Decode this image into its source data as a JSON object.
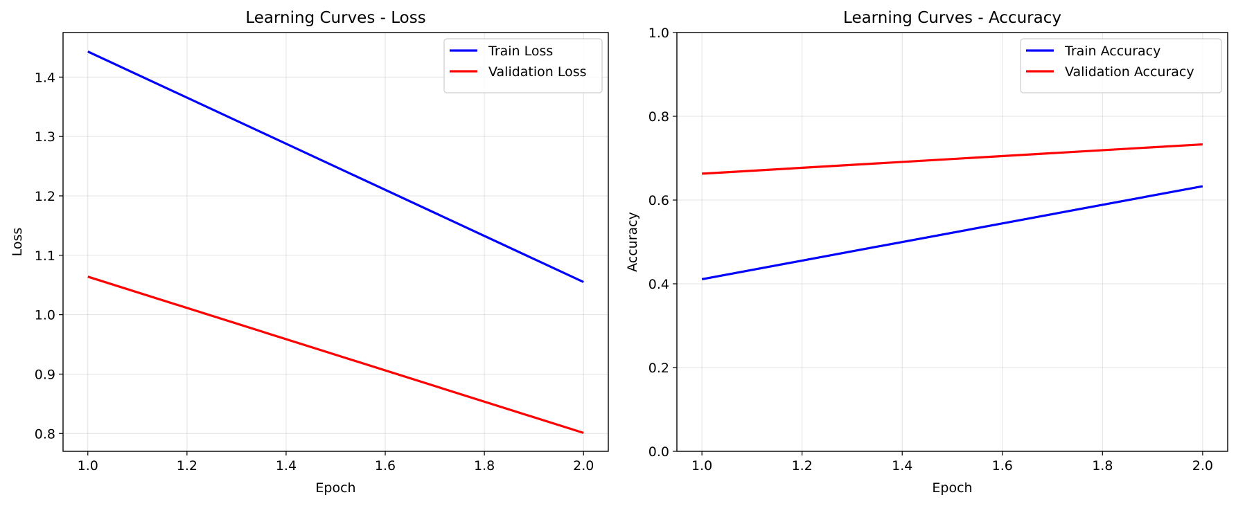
{
  "chart_data": [
    {
      "type": "line",
      "title": "Learning Curves - Loss",
      "xlabel": "Epoch",
      "ylabel": "Loss",
      "x": [
        1.0,
        2.0
      ],
      "xlim": [
        0.95,
        2.05
      ],
      "ylim": [
        0.77,
        1.475
      ],
      "xticks": [
        1.0,
        1.2,
        1.4,
        1.6,
        1.8,
        2.0
      ],
      "xtick_labels": [
        "1.0",
        "1.2",
        "1.4",
        "1.6",
        "1.8",
        "2.0"
      ],
      "yticks": [
        0.8,
        0.9,
        1.0,
        1.1,
        1.2,
        1.3,
        1.4
      ],
      "ytick_labels": [
        "0.8",
        "0.9",
        "1.0",
        "1.1",
        "1.2",
        "1.3",
        "1.4"
      ],
      "grid": true,
      "legend_position": "top-right",
      "series": [
        {
          "name": "Train Loss",
          "color": "#0000ff",
          "values": [
            1.443,
            1.055
          ]
        },
        {
          "name": "Validation Loss",
          "color": "#ff0000",
          "values": [
            1.064,
            0.801
          ]
        }
      ]
    },
    {
      "type": "line",
      "title": "Learning Curves - Accuracy",
      "xlabel": "Epoch",
      "ylabel": "Accuracy",
      "x": [
        1.0,
        2.0
      ],
      "xlim": [
        0.95,
        2.05
      ],
      "ylim": [
        0.0,
        1.0
      ],
      "xticks": [
        1.0,
        1.2,
        1.4,
        1.6,
        1.8,
        2.0
      ],
      "xtick_labels": [
        "1.0",
        "1.2",
        "1.4",
        "1.6",
        "1.8",
        "2.0"
      ],
      "yticks": [
        0.0,
        0.2,
        0.4,
        0.6,
        0.8,
        1.0
      ],
      "ytick_labels": [
        "0.0",
        "0.2",
        "0.4",
        "0.6",
        "0.8",
        "1.0"
      ],
      "grid": true,
      "legend_position": "top-right",
      "series": [
        {
          "name": "Train Accuracy",
          "color": "#0000ff",
          "values": [
            0.411,
            0.633
          ]
        },
        {
          "name": "Validation Accuracy",
          "color": "#ff0000",
          "values": [
            0.663,
            0.733
          ]
        }
      ]
    }
  ]
}
